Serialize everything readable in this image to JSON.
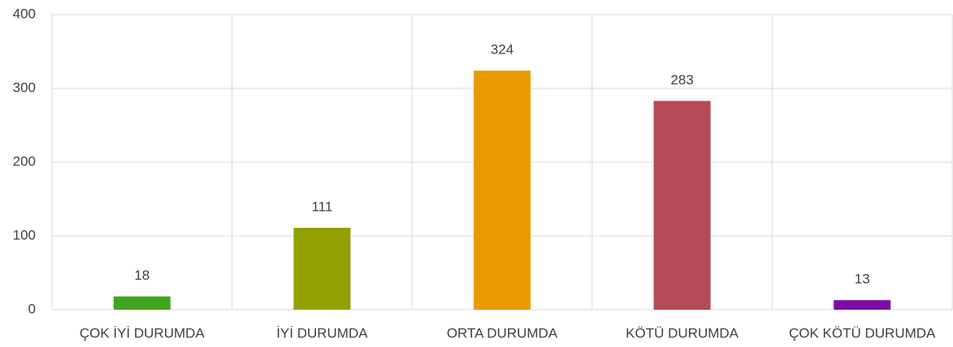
{
  "chart_data": {
    "type": "bar",
    "categories": [
      "ÇOK İYİ DURUMDA",
      "İYİ DURUMDA",
      "ORTA DURUMDA",
      "KÖTÜ DURUMDA",
      "ÇOK KÖTÜ DURUMDA"
    ],
    "values": [
      18,
      111,
      324,
      283,
      13
    ],
    "colors": [
      "#3fa51c",
      "#92a000",
      "#e89a00",
      "#b54b55",
      "#7b0fa5"
    ],
    "ylim": [
      0,
      400
    ],
    "yticks": [
      0,
      100,
      200,
      300,
      400
    ],
    "grid": true
  }
}
